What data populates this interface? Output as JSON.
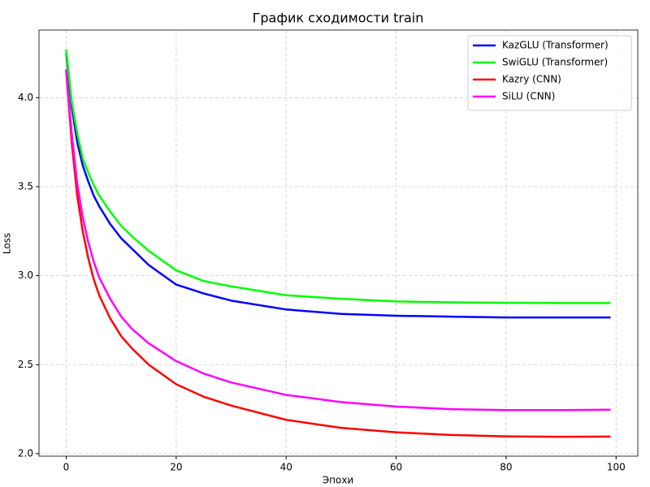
{
  "chart_data": {
    "type": "line",
    "title": "График сходимости train",
    "xlabel": "Эпохи",
    "ylabel": "Loss",
    "x": [
      0,
      1,
      2,
      3,
      4,
      5,
      6,
      8,
      10,
      12,
      15,
      20,
      25,
      30,
      40,
      50,
      60,
      70,
      80,
      90,
      99
    ],
    "series": [
      {
        "name": "KazGLU (Transformer)",
        "color": "#0000ff",
        "values": [
          4.25,
          3.95,
          3.75,
          3.62,
          3.53,
          3.45,
          3.39,
          3.29,
          3.21,
          3.15,
          3.06,
          2.95,
          2.9,
          2.86,
          2.81,
          2.785,
          2.775,
          2.77,
          2.765,
          2.765,
          2.765
        ]
      },
      {
        "name": "SwiGLU (Transformer)",
        "color": "#00ff00",
        "values": [
          4.27,
          3.98,
          3.8,
          3.66,
          3.58,
          3.51,
          3.45,
          3.36,
          3.28,
          3.22,
          3.14,
          3.03,
          2.97,
          2.94,
          2.89,
          2.87,
          2.855,
          2.85,
          2.848,
          2.846,
          2.846
        ]
      },
      {
        "name": "Kazry (CNN)",
        "color": "#ff0000",
        "values": [
          4.15,
          3.75,
          3.45,
          3.25,
          3.1,
          2.98,
          2.89,
          2.76,
          2.66,
          2.59,
          2.5,
          2.39,
          2.32,
          2.27,
          2.19,
          2.145,
          2.12,
          2.105,
          2.097,
          2.095,
          2.096
        ]
      },
      {
        "name": "SiLU (CNN)",
        "color": "#ff00ff",
        "values": [
          4.16,
          3.8,
          3.52,
          3.33,
          3.19,
          3.08,
          2.99,
          2.87,
          2.77,
          2.7,
          2.62,
          2.52,
          2.45,
          2.4,
          2.33,
          2.29,
          2.265,
          2.25,
          2.245,
          2.245,
          2.247
        ]
      }
    ],
    "xlim": [
      -4.95,
      103.95
    ],
    "ylim": [
      1.986,
      4.38
    ],
    "xticks": [
      0,
      20,
      40,
      60,
      80,
      100
    ],
    "yticks": [
      {
        "value": 2.0,
        "label": "2.0"
      },
      {
        "value": 2.5,
        "label": "2.5"
      },
      {
        "value": 3.0,
        "label": "3.0"
      },
      {
        "value": 3.5,
        "label": "3.5"
      },
      {
        "value": 4.0,
        "label": "4.0"
      }
    ],
    "grid": true,
    "legend": "upper right"
  }
}
